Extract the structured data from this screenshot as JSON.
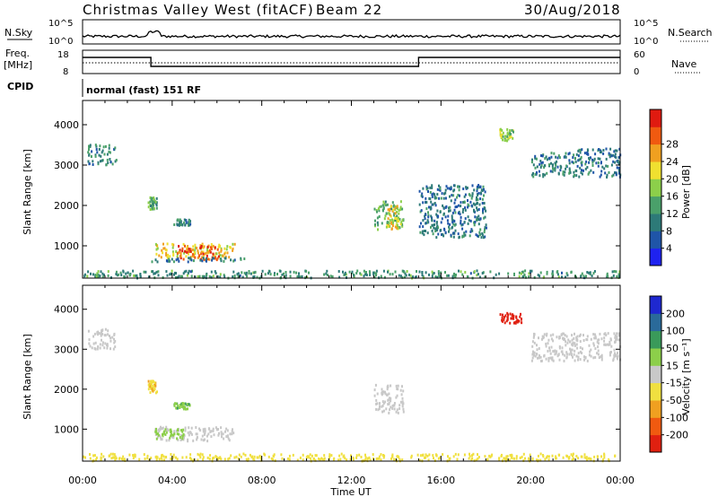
{
  "header": {
    "station": "Christmas Valley West (fitACF)",
    "beam": "Beam 22",
    "date": "30/Aug/2018"
  },
  "strips": {
    "nsky_label": "N.Sky",
    "nsky_ticks": [
      "10^5",
      "10^0"
    ],
    "nsearch_label": "N.Search",
    "nsearch_ticks": [
      "10^5",
      "10^0"
    ],
    "freq_label_top": "Freq.",
    "freq_label_unit": "[MHz]",
    "freq_ticks": [
      "18",
      "8"
    ],
    "nave_label": "Nave",
    "nave_ticks": [
      "60",
      "0"
    ],
    "cpid_label": "CPID",
    "cpid_text": "normal (fast) 151 RF"
  },
  "colors": {
    "power": [
      "#1e22f0",
      "#1f55a8",
      "#2d7a78",
      "#4aa06a",
      "#8ccf4a",
      "#f0e030",
      "#f0a020",
      "#f05a10",
      "#e01a10"
    ],
    "velocity": [
      "#e02010",
      "#f05a10",
      "#f0a020",
      "#f0e040",
      "#c8c8c8",
      "#8ccf4a",
      "#3a9a5a",
      "#2a6a9a",
      "#1e28d0"
    ]
  },
  "chart_data": [
    {
      "type": "heatmap",
      "name": "power",
      "ylabel": "Slant Range [km]",
      "yticks": [
        1000,
        2000,
        3000,
        4000
      ],
      "ylim": [
        200,
        4600
      ],
      "xlim": [
        0,
        24
      ],
      "colorbar_label": "Power [dB]",
      "colorbar_ticks": [
        4,
        8,
        12,
        16,
        20,
        24,
        28
      ],
      "colorbar_range": [
        0,
        32
      ],
      "patches": [
        {
          "t0": 3.2,
          "t1": 6.8,
          "r0": 700,
          "r1": 1050,
          "v": 20
        },
        {
          "t0": 4.2,
          "t1": 6.2,
          "r0": 650,
          "r1": 1000,
          "v": 27
        },
        {
          "t0": 3.0,
          "t1": 7.2,
          "r0": 600,
          "r1": 700,
          "v": 9
        },
        {
          "t0": 2.9,
          "t1": 3.3,
          "r0": 1900,
          "r1": 2200,
          "v": 12
        },
        {
          "t0": 4.0,
          "t1": 4.8,
          "r0": 1500,
          "r1": 1650,
          "v": 10
        },
        {
          "t0": 0.2,
          "t1": 1.5,
          "r0": 3000,
          "r1": 3500,
          "v": 10
        },
        {
          "t0": 13.0,
          "t1": 14.3,
          "r0": 1400,
          "r1": 2100,
          "v": 14
        },
        {
          "t0": 13.6,
          "t1": 14.1,
          "r0": 1400,
          "r1": 2000,
          "v": 20
        },
        {
          "t0": 18.6,
          "t1": 19.2,
          "r0": 3600,
          "r1": 3900,
          "v": 16
        },
        {
          "t0": 20.0,
          "t1": 22.0,
          "r0": 2700,
          "r1": 3300,
          "v": 9
        },
        {
          "t0": 22.0,
          "t1": 24.0,
          "r0": 2700,
          "r1": 3400,
          "v": 8
        },
        {
          "t0": 15.0,
          "t1": 18.0,
          "r0": 1200,
          "r1": 2500,
          "v": 8
        },
        {
          "t0": 0.0,
          "t1": 24.0,
          "r0": 200,
          "r1": 380,
          "v": 11
        }
      ]
    },
    {
      "type": "heatmap",
      "name": "velocity",
      "ylabel": "Slant Range [km]",
      "xlabel": "Time UT",
      "yticks": [
        1000,
        2000,
        3000,
        4000
      ],
      "ylim": [
        200,
        4600
      ],
      "xlim": [
        0,
        24
      ],
      "xticks": [
        "00:00",
        "04:00",
        "08:00",
        "12:00",
        "16:00",
        "20:00",
        "00:00"
      ],
      "colorbar_label": "Velocity [m s⁻¹]",
      "colorbar_ticks": [
        "-200",
        "-100",
        "-50",
        "-15",
        "15",
        "50",
        "100",
        "200"
      ],
      "patches": [
        {
          "t0": 3.2,
          "t1": 6.8,
          "r0": 700,
          "r1": 1050,
          "v": 0
        },
        {
          "t0": 3.2,
          "t1": 4.5,
          "r0": 750,
          "r1": 1000,
          "v": 30
        },
        {
          "t0": 2.9,
          "t1": 3.3,
          "r0": 1900,
          "r1": 2200,
          "v": -40
        },
        {
          "t0": 0.2,
          "t1": 1.5,
          "r0": 3000,
          "r1": 3500,
          "v": 0
        },
        {
          "t0": 4.0,
          "t1": 4.8,
          "r0": 1500,
          "r1": 1650,
          "v": 40
        },
        {
          "t0": 13.0,
          "t1": 14.3,
          "r0": 1400,
          "r1": 2100,
          "v": 0
        },
        {
          "t0": 18.6,
          "t1": 19.6,
          "r0": 3650,
          "r1": 3900,
          "v": -220
        },
        {
          "t0": 20.0,
          "t1": 24.0,
          "r0": 2700,
          "r1": 3400,
          "v": 0
        },
        {
          "t0": 0.0,
          "t1": 24.0,
          "r0": 200,
          "r1": 380,
          "v": -30
        }
      ]
    }
  ]
}
